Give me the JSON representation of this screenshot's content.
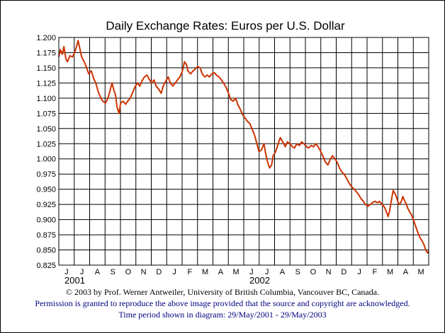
{
  "footer": {
    "copyright": "© 2003 by Prof. Werner Antweiler, University of British Columbia, Vancouver BC, Canada.",
    "permission": "Permission is granted to reproduce the above image provided that the source and copyright are acknowledged.",
    "period": "Time period shown in diagram: 29/May/2001 - 29/May/2003"
  },
  "chart_data": {
    "type": "line",
    "title": "Daily Exchange Rates: Euros per U.S. Dollar",
    "xlabel": "",
    "ylabel": "",
    "ylim": [
      0.825,
      1.2
    ],
    "yticks": [
      "1.200",
      "1.175",
      "1.150",
      "1.125",
      "1.100",
      "1.075",
      "1.050",
      "1.025",
      "1.000",
      "0.975",
      "0.950",
      "0.925",
      "0.900",
      "0.875",
      "0.850",
      "0.825"
    ],
    "month_labels": [
      "J",
      "J",
      "A",
      "S",
      "O",
      "N",
      "D",
      "J",
      "F",
      "M",
      "A",
      "M",
      "J",
      "J",
      "A",
      "S",
      "O",
      "N",
      "D",
      "J",
      "F",
      "M",
      "A",
      "M"
    ],
    "year_labels": [
      {
        "label": "2001",
        "month_index": 0
      },
      {
        "label": "2002",
        "month_index": 12
      }
    ],
    "grid": true,
    "line_color": "#cc3300",
    "x_start": "2001-05-29",
    "x_end": "2003-05-29",
    "series": [
      {
        "values": [
          [
            "2001-05-29",
            1.168
          ],
          [
            "2001-06-01",
            1.18
          ],
          [
            "2001-06-05",
            1.172
          ],
          [
            "2001-06-08",
            1.185
          ],
          [
            "2001-06-12",
            1.165
          ],
          [
            "2001-06-15",
            1.16
          ],
          [
            "2001-06-20",
            1.17
          ],
          [
            "2001-06-25",
            1.168
          ],
          [
            "2001-06-29",
            1.175
          ],
          [
            "2001-07-03",
            1.185
          ],
          [
            "2001-07-06",
            1.195
          ],
          [
            "2001-07-10",
            1.18
          ],
          [
            "2001-07-13",
            1.168
          ],
          [
            "2001-07-18",
            1.16
          ],
          [
            "2001-07-23",
            1.15
          ],
          [
            "2001-07-27",
            1.14
          ],
          [
            "2001-08-01",
            1.145
          ],
          [
            "2001-08-06",
            1.132
          ],
          [
            "2001-08-10",
            1.125
          ],
          [
            "2001-08-15",
            1.11
          ],
          [
            "2001-08-20",
            1.1
          ],
          [
            "2001-08-24",
            1.095
          ],
          [
            "2001-08-29",
            1.092
          ],
          [
            "2001-09-03",
            1.1
          ],
          [
            "2001-09-07",
            1.112
          ],
          [
            "2001-09-11",
            1.125
          ],
          [
            "2001-09-14",
            1.115
          ],
          [
            "2001-09-18",
            1.105
          ],
          [
            "2001-09-21",
            1.085
          ],
          [
            "2001-09-25",
            1.075
          ],
          [
            "2001-09-28",
            1.092
          ],
          [
            "2001-10-03",
            1.095
          ],
          [
            "2001-10-08",
            1.09
          ],
          [
            "2001-10-12",
            1.095
          ],
          [
            "2001-10-17",
            1.1
          ],
          [
            "2001-10-22",
            1.11
          ],
          [
            "2001-10-26",
            1.118
          ],
          [
            "2001-10-31",
            1.125
          ],
          [
            "2001-11-05",
            1.12
          ],
          [
            "2001-11-09",
            1.128
          ],
          [
            "2001-11-14",
            1.135
          ],
          [
            "2001-11-19",
            1.138
          ],
          [
            "2001-11-23",
            1.132
          ],
          [
            "2001-11-28",
            1.125
          ],
          [
            "2001-12-03",
            1.13
          ],
          [
            "2001-12-07",
            1.12
          ],
          [
            "2001-12-12",
            1.115
          ],
          [
            "2001-12-17",
            1.108
          ],
          [
            "2001-12-21",
            1.12
          ],
          [
            "2001-12-26",
            1.128
          ],
          [
            "2001-12-31",
            1.135
          ],
          [
            "2002-01-04",
            1.125
          ],
          [
            "2002-01-09",
            1.12
          ],
          [
            "2002-01-14",
            1.125
          ],
          [
            "2002-01-18",
            1.13
          ],
          [
            "2002-01-23",
            1.135
          ],
          [
            "2002-01-28",
            1.145
          ],
          [
            "2002-02-01",
            1.16
          ],
          [
            "2002-02-05",
            1.155
          ],
          [
            "2002-02-08",
            1.145
          ],
          [
            "2002-02-13",
            1.14
          ],
          [
            "2002-02-18",
            1.145
          ],
          [
            "2002-02-22",
            1.148
          ],
          [
            "2002-02-27",
            1.152
          ],
          [
            "2002-03-04",
            1.15
          ],
          [
            "2002-03-08",
            1.14
          ],
          [
            "2002-03-13",
            1.135
          ],
          [
            "2002-03-18",
            1.138
          ],
          [
            "2002-03-22",
            1.135
          ],
          [
            "2002-03-27",
            1.14
          ],
          [
            "2002-04-01",
            1.142
          ],
          [
            "2002-04-05",
            1.138
          ],
          [
            "2002-04-10",
            1.135
          ],
          [
            "2002-04-15",
            1.13
          ],
          [
            "2002-04-19",
            1.125
          ],
          [
            "2002-04-24",
            1.118
          ],
          [
            "2002-04-29",
            1.108
          ],
          [
            "2002-05-03",
            1.098
          ],
          [
            "2002-05-08",
            1.095
          ],
          [
            "2002-05-13",
            1.1
          ],
          [
            "2002-05-17",
            1.09
          ],
          [
            "2002-05-22",
            1.082
          ],
          [
            "2002-05-27",
            1.072
          ],
          [
            "2002-05-31",
            1.068
          ],
          [
            "2002-06-05",
            1.062
          ],
          [
            "2002-06-10",
            1.058
          ],
          [
            "2002-06-14",
            1.05
          ],
          [
            "2002-06-19",
            1.04
          ],
          [
            "2002-06-24",
            1.025
          ],
          [
            "2002-06-28",
            1.012
          ],
          [
            "2002-07-03",
            1.015
          ],
          [
            "2002-07-08",
            1.025
          ],
          [
            "2002-07-11",
            1.01
          ],
          [
            "2002-07-15",
            0.995
          ],
          [
            "2002-07-19",
            0.985
          ],
          [
            "2002-07-23",
            0.99
          ],
          [
            "2002-07-26",
            1.005
          ],
          [
            "2002-07-31",
            1.012
          ],
          [
            "2002-08-05",
            1.025
          ],
          [
            "2002-08-09",
            1.035
          ],
          [
            "2002-08-14",
            1.028
          ],
          [
            "2002-08-19",
            1.02
          ],
          [
            "2002-08-23",
            1.028
          ],
          [
            "2002-08-28",
            1.025
          ],
          [
            "2002-09-02",
            1.02
          ],
          [
            "2002-09-06",
            1.018
          ],
          [
            "2002-09-11",
            1.025
          ],
          [
            "2002-09-16",
            1.022
          ],
          [
            "2002-09-20",
            1.028
          ],
          [
            "2002-09-25",
            1.025
          ],
          [
            "2002-09-30",
            1.02
          ],
          [
            "2002-10-04",
            1.018
          ],
          [
            "2002-10-09",
            1.022
          ],
          [
            "2002-10-14",
            1.02
          ],
          [
            "2002-10-18",
            1.025
          ],
          [
            "2002-10-23",
            1.02
          ],
          [
            "2002-10-28",
            1.012
          ],
          [
            "2002-11-01",
            1.005
          ],
          [
            "2002-11-06",
            0.995
          ],
          [
            "2002-11-11",
            0.99
          ],
          [
            "2002-11-15",
            0.998
          ],
          [
            "2002-11-20",
            1.005
          ],
          [
            "2002-11-25",
            1.0
          ],
          [
            "2002-11-29",
            0.995
          ],
          [
            "2002-12-04",
            0.985
          ],
          [
            "2002-12-09",
            0.978
          ],
          [
            "2002-12-13",
            0.975
          ],
          [
            "2002-12-18",
            0.968
          ],
          [
            "2002-12-23",
            0.96
          ],
          [
            "2002-12-27",
            0.955
          ],
          [
            "2003-01-02",
            0.95
          ],
          [
            "2003-01-07",
            0.945
          ],
          [
            "2003-01-10",
            0.942
          ],
          [
            "2003-01-15",
            0.935
          ],
          [
            "2003-01-20",
            0.93
          ],
          [
            "2003-01-24",
            0.925
          ],
          [
            "2003-01-29",
            0.922
          ],
          [
            "2003-02-03",
            0.925
          ],
          [
            "2003-02-07",
            0.928
          ],
          [
            "2003-02-12",
            0.93
          ],
          [
            "2003-02-17",
            0.928
          ],
          [
            "2003-02-21",
            0.93
          ],
          [
            "2003-02-26",
            0.925
          ],
          [
            "2003-03-03",
            0.92
          ],
          [
            "2003-03-07",
            0.912
          ],
          [
            "2003-03-10",
            0.905
          ],
          [
            "2003-03-13",
            0.915
          ],
          [
            "2003-03-17",
            0.935
          ],
          [
            "2003-03-20",
            0.948
          ],
          [
            "2003-03-24",
            0.942
          ],
          [
            "2003-03-27",
            0.935
          ],
          [
            "2003-03-31",
            0.925
          ],
          [
            "2003-04-04",
            0.928
          ],
          [
            "2003-04-08",
            0.938
          ],
          [
            "2003-04-11",
            0.932
          ],
          [
            "2003-04-15",
            0.925
          ],
          [
            "2003-04-18",
            0.918
          ],
          [
            "2003-04-22",
            0.912
          ],
          [
            "2003-04-25",
            0.908
          ],
          [
            "2003-04-29",
            0.9
          ],
          [
            "2003-05-02",
            0.892
          ],
          [
            "2003-05-07",
            0.88
          ],
          [
            "2003-05-12",
            0.87
          ],
          [
            "2003-05-16",
            0.865
          ],
          [
            "2003-05-20",
            0.858
          ],
          [
            "2003-05-23",
            0.85
          ],
          [
            "2003-05-27",
            0.845
          ],
          [
            "2003-05-29",
            0.848
          ]
        ]
      }
    ]
  }
}
